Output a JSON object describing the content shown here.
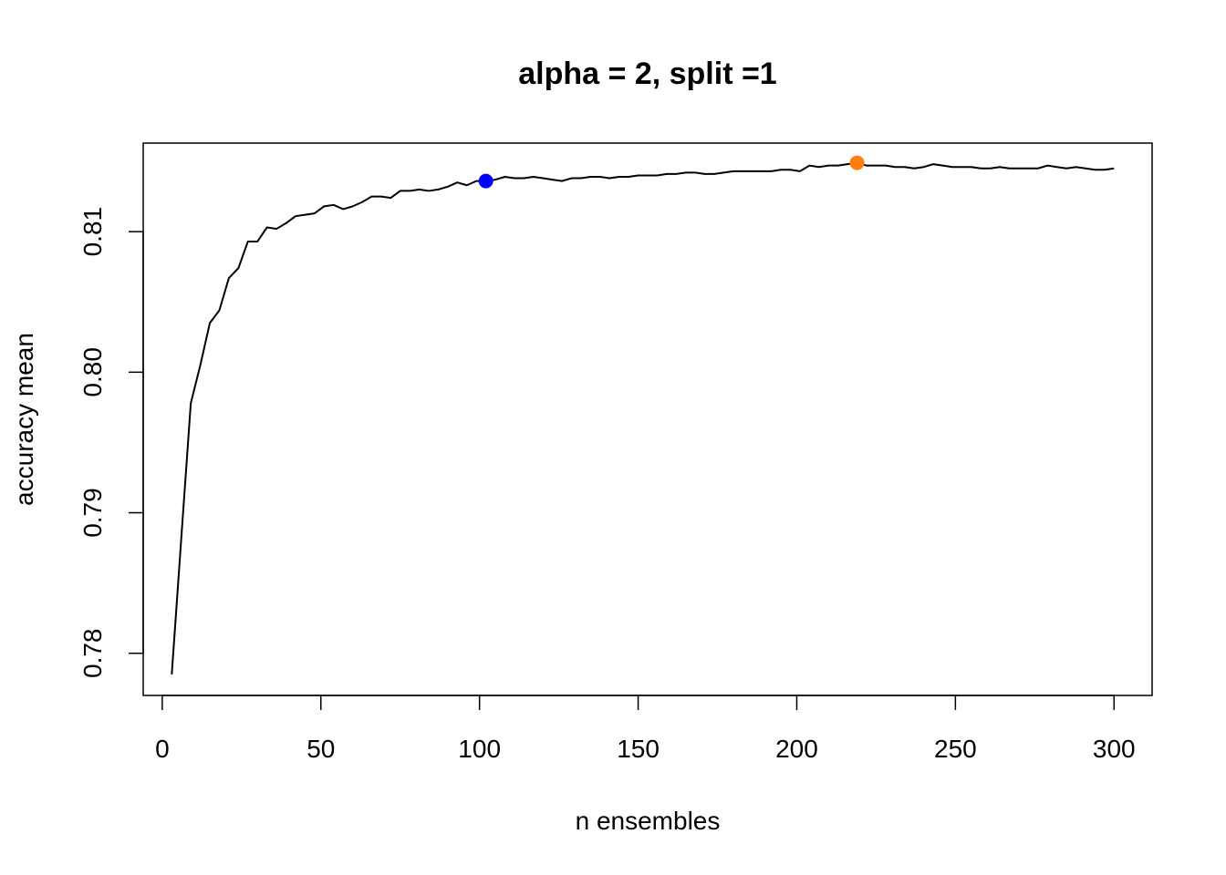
{
  "chart_data": {
    "type": "line",
    "title": "alpha = 2, split =1",
    "xlabel": "n ensembles",
    "ylabel": "accuracy mean",
    "xlim": [
      -6,
      312
    ],
    "ylim": [
      0.777,
      0.8163
    ],
    "xticks": [
      0,
      50,
      100,
      150,
      200,
      250,
      300
    ],
    "yticks": [
      0.78,
      0.79,
      0.8,
      0.81
    ],
    "ytick_labels": [
      "0.78",
      "0.79",
      "0.80",
      "0.81"
    ],
    "grid": false,
    "series": [
      {
        "color": "#000000",
        "x": [
          3,
          6,
          9,
          12,
          15,
          18,
          21,
          24,
          27,
          30,
          33,
          36,
          39,
          42,
          45,
          48,
          51,
          54,
          57,
          60,
          63,
          66,
          69,
          72,
          75,
          78,
          81,
          84,
          87,
          90,
          93,
          96,
          99,
          102,
          105,
          108,
          111,
          114,
          117,
          120,
          123,
          126,
          129,
          132,
          135,
          138,
          141,
          144,
          147,
          150,
          153,
          156,
          159,
          162,
          165,
          168,
          171,
          174,
          177,
          180,
          183,
          186,
          189,
          192,
          195,
          198,
          201,
          204,
          207,
          210,
          213,
          216,
          219,
          222,
          225,
          228,
          231,
          234,
          237,
          240,
          243,
          246,
          249,
          252,
          255,
          258,
          261,
          264,
          267,
          270,
          273,
          276,
          279,
          282,
          285,
          288,
          291,
          294,
          297,
          300
        ],
        "y": [
          0.7785,
          0.7882,
          0.7978,
          0.8005,
          0.8035,
          0.8044,
          0.8067,
          0.8074,
          0.8093,
          0.8093,
          0.8103,
          0.8102,
          0.8106,
          0.8111,
          0.8112,
          0.8113,
          0.8118,
          0.8119,
          0.8116,
          0.8118,
          0.8121,
          0.8125,
          0.8125,
          0.8124,
          0.8129,
          0.8129,
          0.813,
          0.8129,
          0.813,
          0.8132,
          0.8135,
          0.8133,
          0.8136,
          0.8136,
          0.8137,
          0.8139,
          0.8138,
          0.8138,
          0.8139,
          0.8138,
          0.8137,
          0.8136,
          0.8138,
          0.8138,
          0.8139,
          0.8139,
          0.8138,
          0.8139,
          0.8139,
          0.814,
          0.814,
          0.814,
          0.8141,
          0.8141,
          0.8142,
          0.8142,
          0.8141,
          0.8141,
          0.8142,
          0.8143,
          0.8143,
          0.8143,
          0.8143,
          0.8143,
          0.8144,
          0.8144,
          0.8143,
          0.8147,
          0.8146,
          0.8147,
          0.8147,
          0.8148,
          0.8149,
          0.8147,
          0.8147,
          0.8147,
          0.8146,
          0.8146,
          0.8145,
          0.8146,
          0.8148,
          0.8147,
          0.8146,
          0.8146,
          0.8146,
          0.8145,
          0.8145,
          0.8146,
          0.8145,
          0.8145,
          0.8145,
          0.8145,
          0.8147,
          0.8146,
          0.8145,
          0.8146,
          0.8145,
          0.8144,
          0.8144,
          0.8145
        ]
      }
    ],
    "highlight_points": [
      {
        "x": 102,
        "y": 0.8136,
        "color": "#0000ff"
      },
      {
        "x": 219,
        "y": 0.8149,
        "color": "#ff7f0e"
      }
    ]
  }
}
